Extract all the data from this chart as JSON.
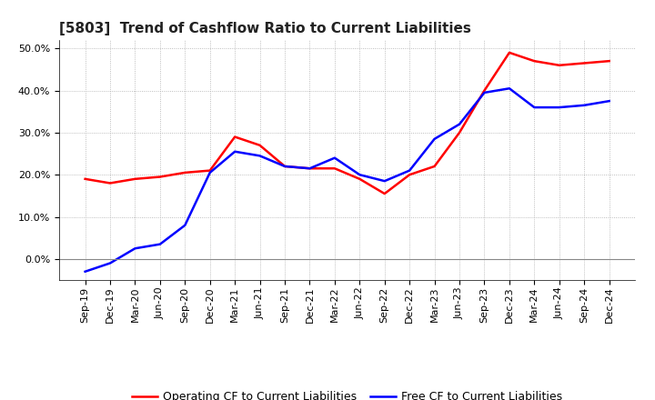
{
  "title": "[5803]  Trend of Cashflow Ratio to Current Liabilities",
  "labels": [
    "Sep-19",
    "Dec-19",
    "Mar-20",
    "Jun-20",
    "Sep-20",
    "Dec-20",
    "Mar-21",
    "Jun-21",
    "Sep-21",
    "Dec-21",
    "Mar-22",
    "Jun-22",
    "Sep-22",
    "Dec-22",
    "Mar-23",
    "Jun-23",
    "Sep-23",
    "Dec-23",
    "Mar-24",
    "Jun-24",
    "Sep-24",
    "Dec-24"
  ],
  "operating_cf": [
    0.19,
    0.18,
    0.19,
    0.195,
    0.205,
    0.21,
    0.29,
    0.27,
    0.22,
    0.215,
    0.215,
    0.19,
    0.155,
    0.2,
    0.22,
    0.3,
    0.4,
    0.49,
    0.47,
    0.46,
    0.465,
    0.47
  ],
  "free_cf": [
    -0.03,
    -0.01,
    0.025,
    0.035,
    0.08,
    0.205,
    0.255,
    0.245,
    0.22,
    0.215,
    0.24,
    0.2,
    0.185,
    0.21,
    0.285,
    0.32,
    0.395,
    0.405,
    0.36,
    0.36,
    0.365,
    0.375
  ],
  "operating_color": "#FF0000",
  "free_color": "#0000FF",
  "ylim_min": -0.05,
  "ylim_max": 0.52,
  "yticks": [
    0.0,
    0.1,
    0.2,
    0.3,
    0.4,
    0.5
  ],
  "bg_color": "#FFFFFF",
  "grid_color": "#AAAAAA",
  "legend_op": "Operating CF to Current Liabilities",
  "legend_free": "Free CF to Current Liabilities",
  "title_fontsize": 11,
  "tick_fontsize": 8,
  "legend_fontsize": 9
}
